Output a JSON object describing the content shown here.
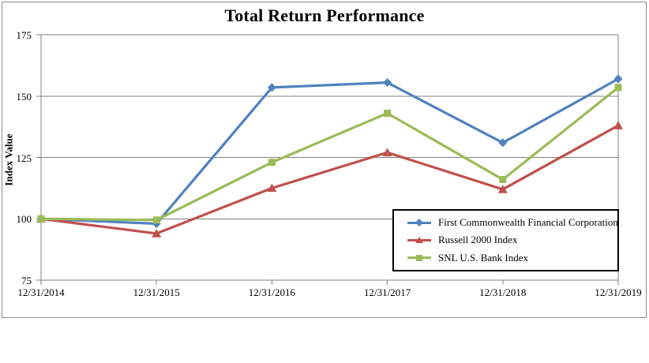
{
  "title": "Total Return Performance",
  "chart_data": {
    "type": "line",
    "title": "Total Return Performance",
    "xlabel": "",
    "ylabel": "Index Value",
    "ylim": [
      75,
      175
    ],
    "yticks": [
      75,
      100,
      125,
      150,
      175
    ],
    "grid": true,
    "legend_position": "inside-bottom-right",
    "categories": [
      "12/31/2014",
      "12/31/2015",
      "12/31/2016",
      "12/31/2017",
      "12/31/2018",
      "12/31/2019"
    ],
    "series": [
      {
        "name": "First Commonwealth Financial Corporation",
        "color": "#4F81BD",
        "marker": "diamond",
        "values": [
          100,
          98,
          153.5,
          155.5,
          131,
          157
        ]
      },
      {
        "name": "Russell 2000 Index",
        "color": "#C0504D",
        "marker": "triangle",
        "values": [
          100,
          94,
          112.5,
          127,
          112,
          138
        ]
      },
      {
        "name": "SNL U.S. Bank Index",
        "color": "#9BBB59",
        "marker": "square",
        "values": [
          100,
          99.5,
          123,
          143,
          116,
          153.5
        ]
      }
    ],
    "colors": {
      "gridline": "#808080",
      "axis": "#808080",
      "frame_border": "#8C8C8C",
      "legend_border": "#000000",
      "text": "#000000"
    }
  }
}
